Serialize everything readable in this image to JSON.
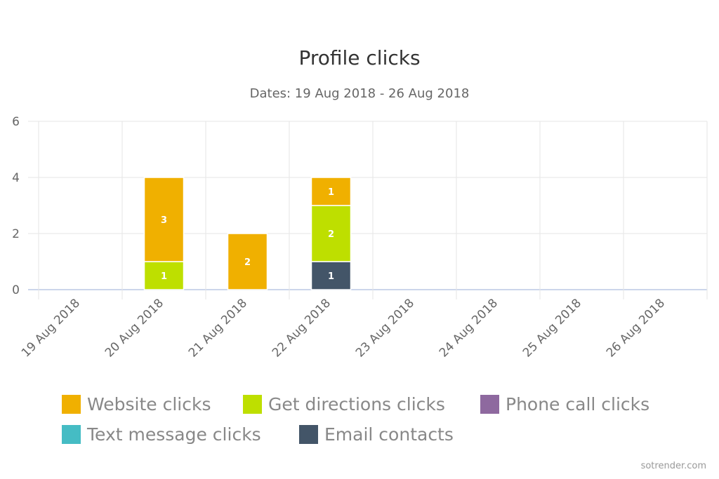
{
  "chart_data": {
    "type": "bar",
    "stacked": true,
    "title": "Profile clicks",
    "subtitle": "Dates: 19 Aug 2018 - 26 Aug 2018",
    "categories": [
      "19 Aug 2018",
      "20 Aug 2018",
      "21 Aug 2018",
      "22 Aug 2018",
      "23 Aug 2018",
      "24 Aug 2018",
      "25 Aug 2018",
      "26 Aug 2018"
    ],
    "ylim": [
      0,
      6
    ],
    "yticks": [
      0,
      2,
      4,
      6
    ],
    "grid": true,
    "legend_position": "bottom",
    "series": [
      {
        "name": "Website clicks",
        "color": "#f0b000",
        "values": [
          0,
          3,
          2,
          1,
          0,
          0,
          0,
          0
        ]
      },
      {
        "name": "Get directions clicks",
        "color": "#bedf00",
        "values": [
          0,
          1,
          0,
          2,
          0,
          0,
          0,
          0
        ]
      },
      {
        "name": "Phone call clicks",
        "color": "#8e699f",
        "values": [
          0,
          0,
          0,
          0,
          0,
          0,
          0,
          0
        ]
      },
      {
        "name": "Text message clicks",
        "color": "#45bcc4",
        "values": [
          0,
          0,
          0,
          0,
          0,
          0,
          0,
          0
        ]
      },
      {
        "name": "Email contacts",
        "color": "#435568",
        "values": [
          0,
          0,
          0,
          1,
          0,
          0,
          0,
          0
        ]
      }
    ]
  },
  "credit": "sotrender.com"
}
